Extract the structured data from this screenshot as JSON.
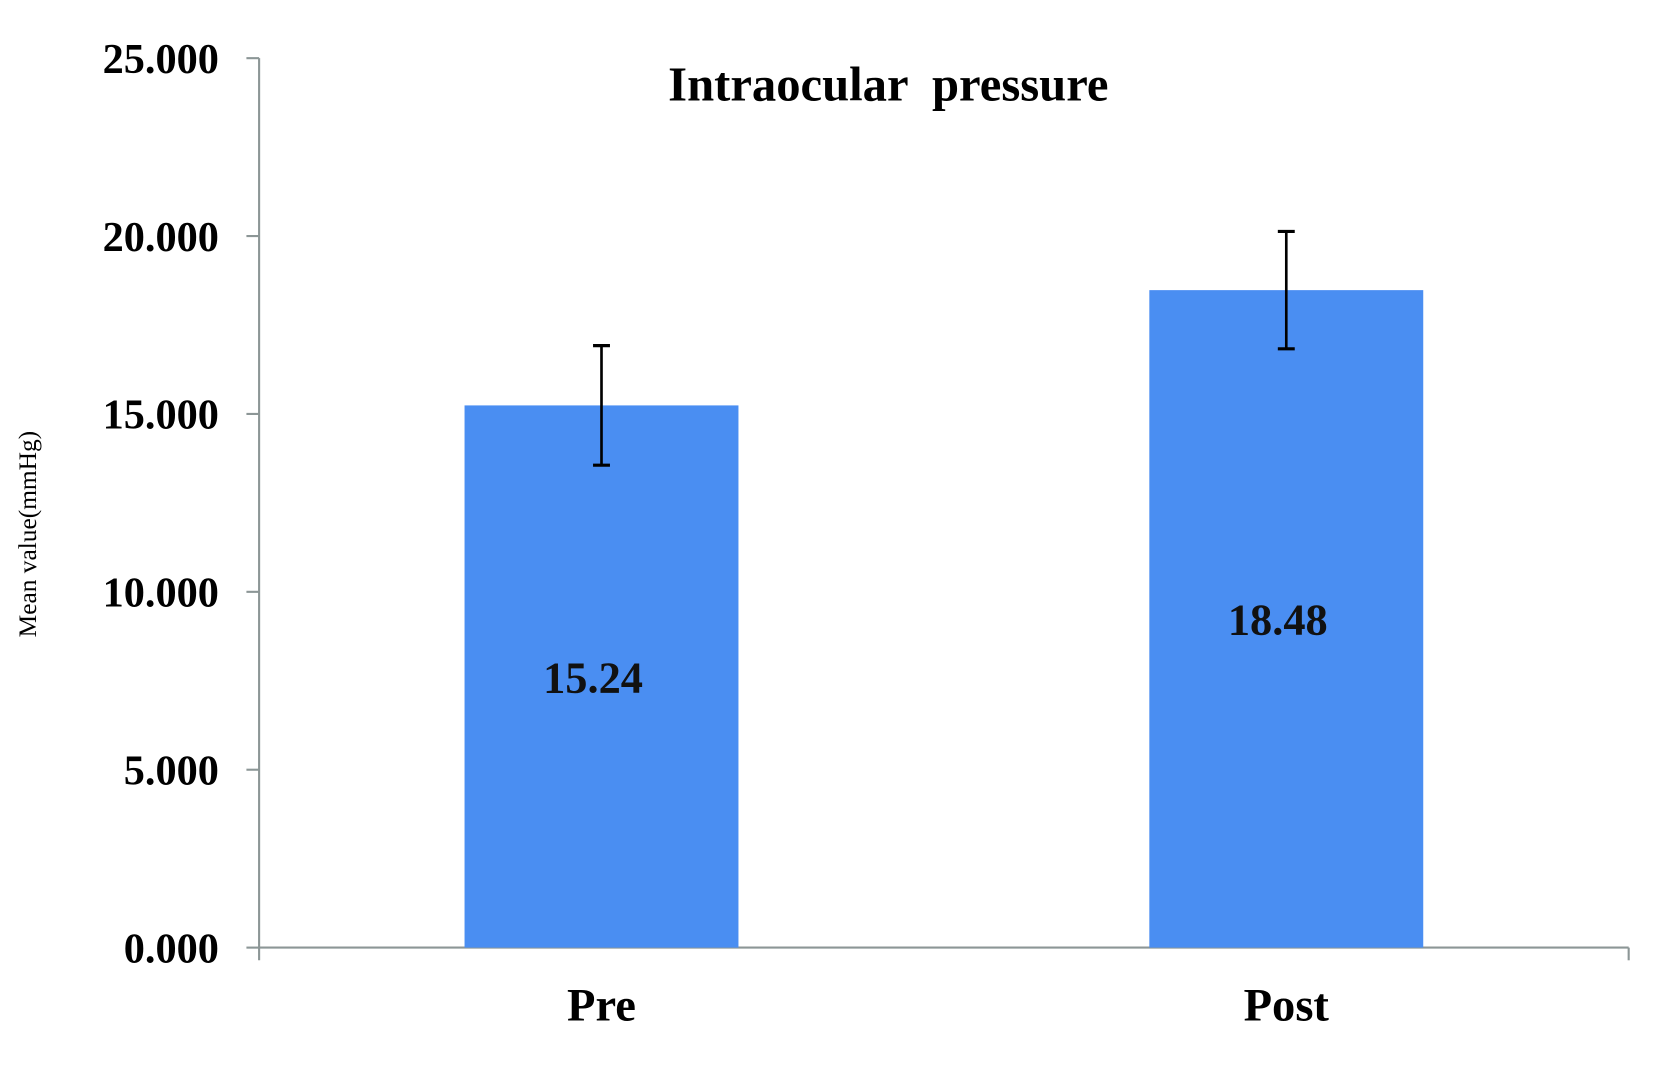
{
  "chart_data": {
    "type": "bar",
    "title": "Intraocular  pressure",
    "xlabel": "",
    "ylabel": "Mean value(mmHg)",
    "categories": [
      "Pre",
      "Post"
    ],
    "values": [
      15.24,
      18.48
    ],
    "error": [
      1.68,
      1.65
    ],
    "data_labels": [
      "15.24",
      "18.48"
    ],
    "ylim": [
      0,
      25
    ],
    "yticks": [
      0,
      5,
      10,
      15,
      20,
      25
    ],
    "ytick_labels": [
      "0.000",
      "5.000",
      "10.000",
      "15.000",
      "20.000",
      "25.000"
    ],
    "grid": false,
    "legend": "none",
    "bar_color": "#4a8ef2",
    "axis_color": "#8c9696"
  }
}
